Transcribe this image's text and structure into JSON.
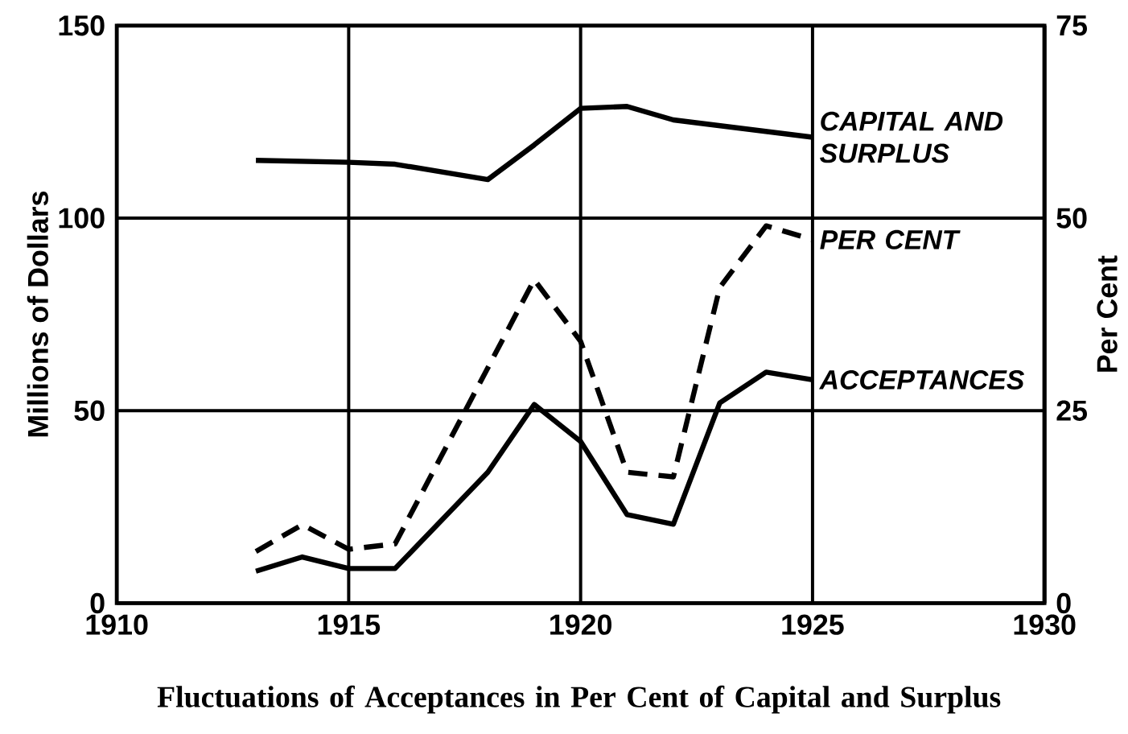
{
  "chart_data": {
    "type": "line",
    "title": "Fluctuations of Acceptances in Per Cent of Capital and Surplus",
    "ylabel": "Millions of Dollars",
    "y2label": "Per Cent",
    "xlim": [
      1910,
      1930
    ],
    "xticks": [
      1910,
      1915,
      1920,
      1925,
      1930
    ],
    "ylim": [
      0,
      150
    ],
    "yticks": [
      0,
      50,
      100,
      150
    ],
    "y2lim": [
      0,
      75
    ],
    "y2ticks": [
      0,
      25,
      50,
      75
    ],
    "grid": true,
    "marker": "none",
    "series": [
      {
        "name": "CAPITAL AND SURPLUS",
        "color": "#000000",
        "line_style": "solid",
        "x": [
          1913,
          1915,
          1916,
          1918,
          1919,
          1920,
          1921,
          1922,
          1925
        ],
        "values": [
          115,
          114.5,
          114,
          110,
          119,
          128.5,
          129,
          125.5,
          121
        ]
      },
      {
        "name": "PER CENT",
        "color": "#000000",
        "line_style": "dashed",
        "axis": "y2",
        "x": [
          1913,
          1914,
          1915,
          1916,
          1919,
          1920,
          1921,
          1922,
          1923,
          1924,
          1925
        ],
        "values": [
          6.7,
          10.2,
          7,
          7.7,
          42,
          34,
          17,
          16.4,
          41,
          49,
          47.2
        ]
      },
      {
        "name": "ACCEPTANCES",
        "color": "#000000",
        "line_style": "solid",
        "x": [
          1913,
          1914,
          1915,
          1916,
          1918,
          1919,
          1920,
          1921,
          1922,
          1923,
          1924,
          1925
        ],
        "values": [
          8.3,
          12,
          9,
          9,
          34,
          51.6,
          42,
          23,
          20.5,
          52,
          60,
          58
        ]
      }
    ]
  }
}
